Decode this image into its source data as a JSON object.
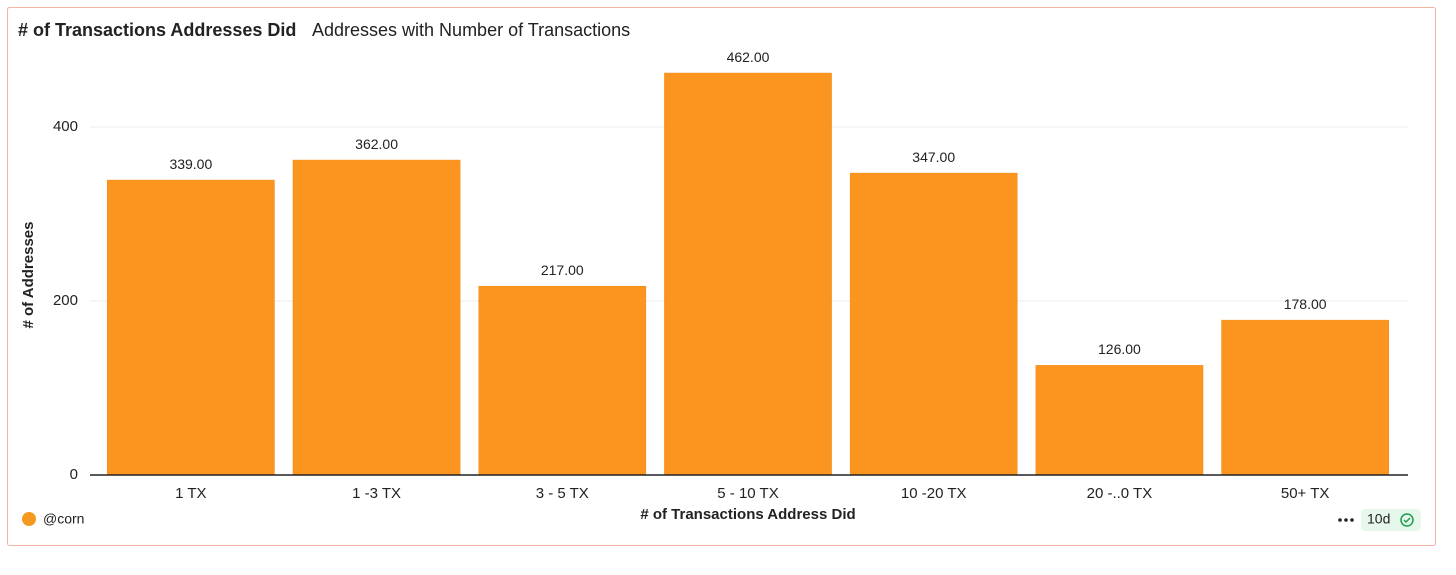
{
  "chart_data": {
    "type": "bar",
    "title": "# of Transactions Addresses Did",
    "subtitle": "Addresses with Number of Transactions",
    "x_label": "# of Transactions Address Did",
    "y_label": "# of Addresses",
    "categories": [
      "1 TX",
      "1 -3 TX",
      "3 - 5 TX",
      "5 - 10 TX",
      "10 -20 TX",
      "20 -..0 TX",
      "50+ TX"
    ],
    "values": [
      339,
      362,
      217,
      462,
      347,
      126,
      178
    ],
    "value_labels": [
      "339.00",
      "362.00",
      "217.00",
      "462.00",
      "347.00",
      "126.00",
      "178.00"
    ],
    "color": "#fb951f",
    "ylim": [
      0,
      480
    ],
    "yticks": [
      0,
      200,
      400
    ],
    "grid": true
  },
  "footer": {
    "author": "@corn",
    "age": "10d"
  }
}
